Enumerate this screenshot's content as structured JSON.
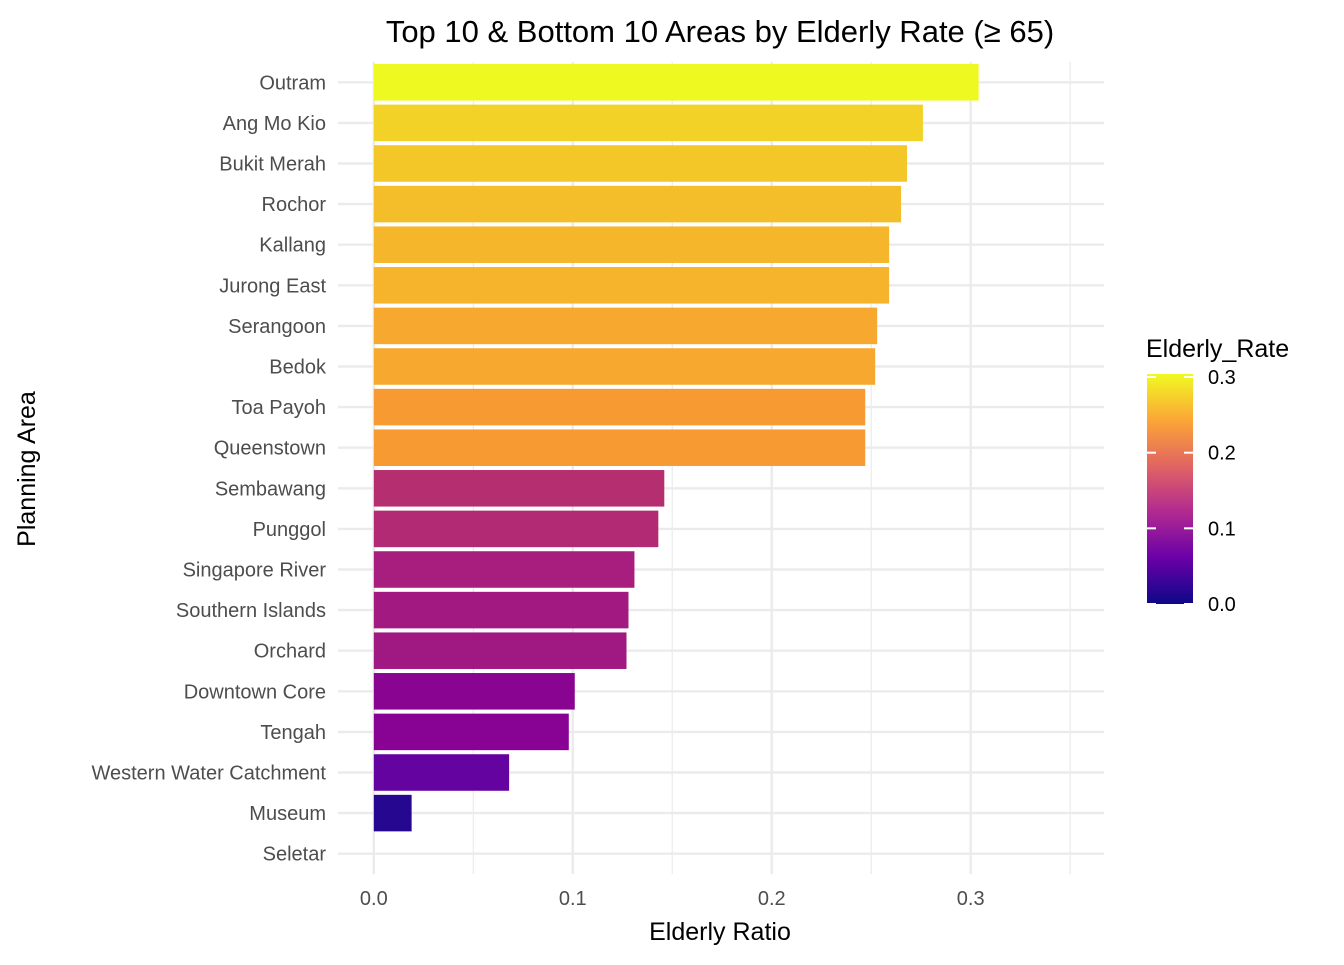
{
  "chart_data": {
    "type": "bar",
    "orientation": "horizontal",
    "title": "Top 10 & Bottom 10 Areas by Elderly Rate (≥ 65)",
    "xlabel": "Elderly Ratio",
    "ylabel": "Planning Area",
    "xlim": [
      -0.018,
      0.367
    ],
    "xticks": [
      "0.0",
      "0.1",
      "0.2",
      "0.3"
    ],
    "xtick_values": [
      0,
      0.1,
      0.2,
      0.3
    ],
    "grid": true,
    "categories": [
      "Outram",
      "Ang Mo Kio",
      "Bukit Merah",
      "Rochor",
      "Kallang",
      "Jurong East",
      "Serangoon",
      "Bedok",
      "Toa Payoh",
      "Queenstown",
      "Sembawang",
      "Punggol",
      "Singapore River",
      "Southern Islands",
      "Orchard",
      "Downtown Core",
      "Tengah",
      "Western Water Catchment",
      "Museum",
      "Seletar"
    ],
    "values": [
      0.304,
      0.276,
      0.268,
      0.265,
      0.259,
      0.259,
      0.253,
      0.252,
      0.247,
      0.247,
      0.146,
      0.143,
      0.131,
      0.128,
      0.127,
      0.101,
      0.098,
      0.068,
      0.019,
      0.0
    ],
    "bar_colors": [
      "#EEF921",
      "#F2D227",
      "#F3C728",
      "#F4BD2A",
      "#F5B62B",
      "#F5B42B",
      "#F6A92E",
      "#F6A82F",
      "#F79A31",
      "#F79A31",
      "#B42E70",
      "#B22A73",
      "#A81E7E",
      "#A11981",
      "#A01882",
      "#8A0492",
      "#880394",
      "#6503A1",
      "#260790",
      "#0D0887"
    ],
    "legend": {
      "title": "Elderly_Rate",
      "placement": "right",
      "labels": [
        "0.3",
        "0.2",
        "0.1",
        "0.0"
      ],
      "label_values": [
        0.3,
        0.2,
        0.1,
        0.0
      ],
      "range": [
        0.0,
        0.304
      ],
      "gradient": [
        "#0D0887",
        "#6A00A8",
        "#B12A90",
        "#E16462",
        "#FCA636",
        "#F0F921"
      ]
    }
  }
}
